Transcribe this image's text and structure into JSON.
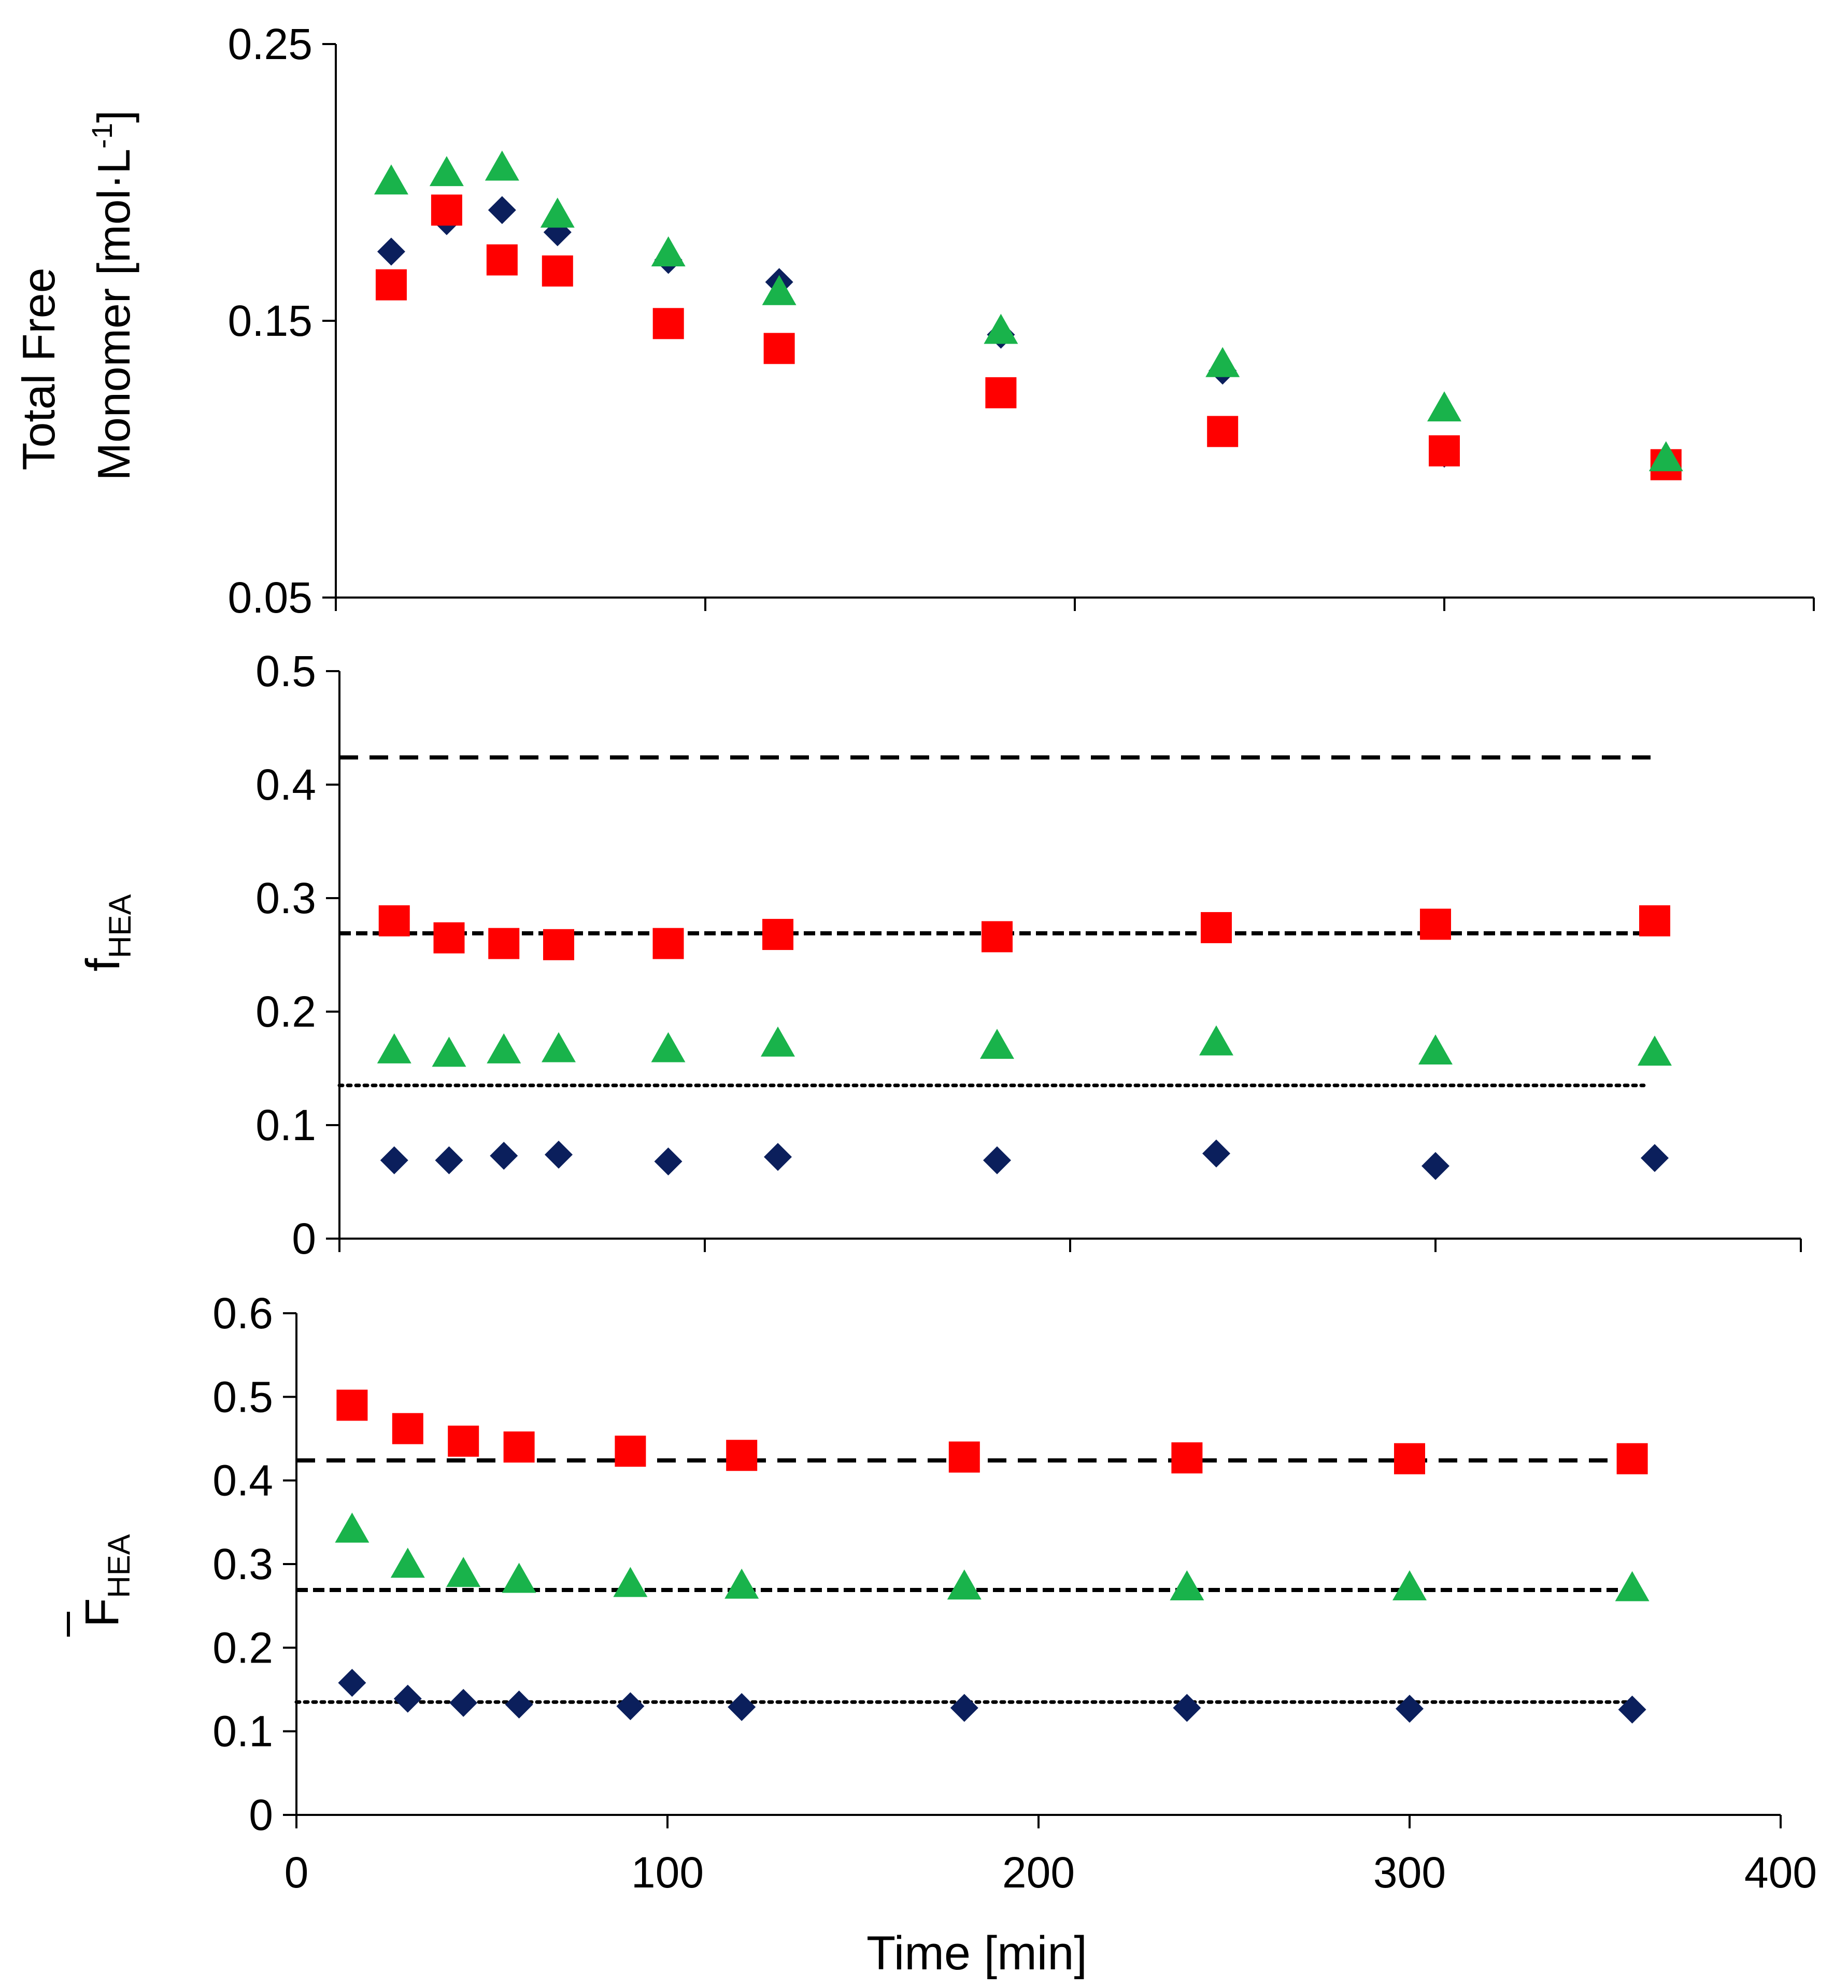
{
  "colors": {
    "diamond": "#0b1f5c",
    "square": "#ff0000",
    "triangle": "#19b34b",
    "axis": "#000000"
  },
  "chart_data": [
    {
      "id": "top",
      "type": "scatter",
      "ylabel_lines": [
        "Total Free",
        "Monomer [mol·L",
        "-1",
        "]"
      ],
      "xlim": [
        0,
        400
      ],
      "ylim": [
        0.05,
        0.25
      ],
      "yticks": [
        0.05,
        0.15,
        0.25
      ],
      "ytick_labels": [
        "0.05",
        "0.15",
        "0.25"
      ],
      "xticks": [
        0,
        100,
        200,
        300,
        400
      ],
      "xtick_labels": [],
      "series": [
        {
          "name": "diamond",
          "marker": "diamond",
          "x": [
            15,
            30,
            45,
            60,
            90,
            120,
            180,
            240,
            300,
            360
          ],
          "y": [
            0.175,
            0.186,
            0.19,
            0.182,
            0.172,
            0.164,
            0.145,
            0.132,
            0.102,
            0.098
          ]
        },
        {
          "name": "square",
          "marker": "square",
          "x": [
            15,
            30,
            45,
            60,
            90,
            120,
            180,
            240,
            300,
            360
          ],
          "y": [
            0.163,
            0.19,
            0.172,
            0.168,
            0.149,
            0.14,
            0.124,
            0.11,
            0.103,
            0.098
          ]
        },
        {
          "name": "triangle",
          "marker": "triangle",
          "x": [
            15,
            30,
            45,
            60,
            90,
            120,
            180,
            240,
            300,
            360
          ],
          "y": [
            0.2,
            0.203,
            0.205,
            0.188,
            0.174,
            0.16,
            0.146,
            0.134,
            0.118,
            0.1
          ]
        }
      ],
      "ref_lines": []
    },
    {
      "id": "middle",
      "type": "scatter",
      "ylabel_main": "f",
      "ylabel_sub": "HEA",
      "xlim": [
        0,
        400
      ],
      "ylim": [
        0,
        0.5
      ],
      "yticks": [
        0,
        0.1,
        0.2,
        0.3,
        0.4,
        0.5
      ],
      "ytick_labels": [
        "0",
        "0.1",
        "0.2",
        "0.3",
        "0.4",
        "0.5"
      ],
      "xticks": [
        0,
        100,
        200,
        300,
        400
      ],
      "xtick_labels": [],
      "series": [
        {
          "name": "diamond",
          "marker": "diamond",
          "x": [
            15,
            30,
            45,
            60,
            90,
            120,
            180,
            240,
            300,
            360
          ],
          "y": [
            0.069,
            0.069,
            0.073,
            0.074,
            0.068,
            0.072,
            0.069,
            0.075,
            0.064,
            0.071
          ]
        },
        {
          "name": "square",
          "marker": "square",
          "x": [
            15,
            30,
            45,
            60,
            90,
            120,
            180,
            240,
            300,
            360
          ],
          "y": [
            0.28,
            0.265,
            0.26,
            0.259,
            0.26,
            0.268,
            0.266,
            0.274,
            0.277,
            0.28
          ]
        },
        {
          "name": "triangle",
          "marker": "triangle",
          "x": [
            15,
            30,
            45,
            60,
            90,
            120,
            180,
            240,
            300,
            360
          ],
          "y": [
            0.165,
            0.162,
            0.165,
            0.166,
            0.166,
            0.171,
            0.169,
            0.172,
            0.164,
            0.163
          ]
        }
      ],
      "ref_lines": [
        {
          "y": 0.424,
          "x0": 0,
          "x1": 360,
          "style": "dashed"
        },
        {
          "y": 0.269,
          "x0": 0,
          "x1": 360,
          "style": "short-dashed"
        },
        {
          "y": 0.135,
          "x0": 0,
          "x1": 357,
          "style": "dotted"
        }
      ]
    },
    {
      "id": "bottom",
      "type": "scatter",
      "ylabel_main": "F",
      "ylabel_sub": "HEA",
      "xlabel": "Time [min]",
      "xlim": [
        0,
        400
      ],
      "ylim": [
        0,
        0.6
      ],
      "yticks": [
        0,
        0.1,
        0.2,
        0.3,
        0.4,
        0.5,
        0.6
      ],
      "ytick_labels": [
        "0",
        "0.1",
        "0.2",
        "0.3",
        "0.4",
        "0.5",
        "0.6"
      ],
      "xticks": [
        0,
        100,
        200,
        300,
        400
      ],
      "xtick_labels": [
        "0",
        "100",
        "200",
        "300",
        "400"
      ],
      "series": [
        {
          "name": "diamond",
          "marker": "diamond",
          "x": [
            15,
            30,
            45,
            60,
            90,
            120,
            180,
            240,
            300,
            360
          ],
          "y": [
            0.158,
            0.139,
            0.134,
            0.132,
            0.13,
            0.129,
            0.128,
            0.128,
            0.127,
            0.126
          ]
        },
        {
          "name": "square",
          "marker": "square",
          "x": [
            15,
            30,
            45,
            60,
            90,
            120,
            180,
            240,
            300,
            360
          ],
          "y": [
            0.49,
            0.462,
            0.447,
            0.44,
            0.435,
            0.43,
            0.428,
            0.427,
            0.426,
            0.426
          ]
        },
        {
          "name": "triangle",
          "marker": "triangle",
          "x": [
            15,
            30,
            45,
            60,
            90,
            120,
            180,
            240,
            300,
            360
          ],
          "y": [
            0.34,
            0.298,
            0.287,
            0.28,
            0.275,
            0.273,
            0.272,
            0.271,
            0.271,
            0.27
          ]
        }
      ],
      "ref_lines": [
        {
          "y": 0.424,
          "x0": 0,
          "x1": 360,
          "style": "dashed"
        },
        {
          "y": 0.269,
          "x0": 0,
          "x1": 360,
          "style": "short-dashed"
        },
        {
          "y": 0.135,
          "x0": 0,
          "x1": 360,
          "style": "dotted"
        }
      ]
    }
  ]
}
